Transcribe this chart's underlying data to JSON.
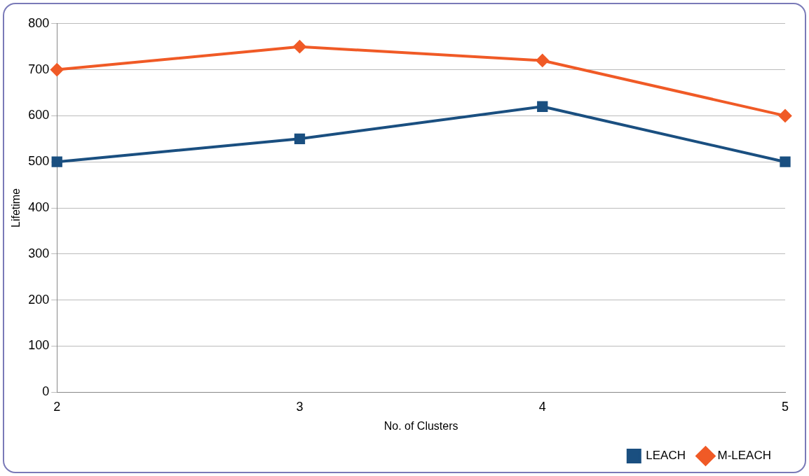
{
  "chart_data": {
    "type": "line",
    "xlabel": "No. of Clusters",
    "ylabel": "Lifetime",
    "categories": [
      "2",
      "3",
      "4",
      "5"
    ],
    "series": [
      {
        "name": "LEACH",
        "color": "#1a4f80",
        "values": [
          500,
          550,
          620,
          500
        ],
        "marker": "square"
      },
      {
        "name": "M-LEACH",
        "color": "#f05a26",
        "values": [
          700,
          750,
          720,
          600
        ],
        "marker": "diamond"
      }
    ],
    "ylim": [
      0,
      800
    ],
    "yticks": [
      0,
      100,
      200,
      300,
      400,
      500,
      600,
      700,
      800
    ],
    "grid": "y",
    "legend": "bottom right",
    "line_style": "solid"
  }
}
